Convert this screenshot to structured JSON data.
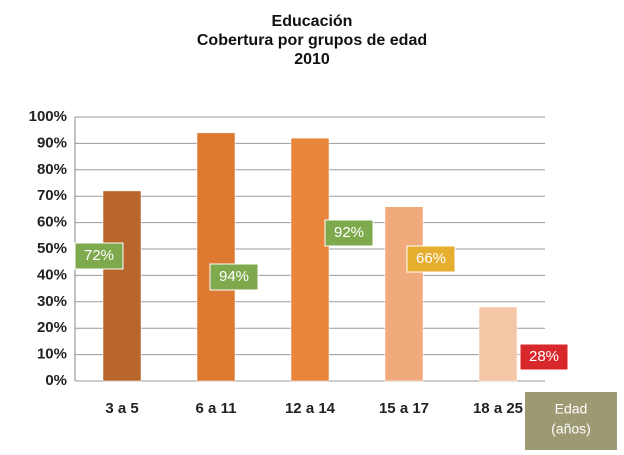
{
  "chart_data": {
    "type": "bar",
    "title": [
      "Educación",
      "Cobertura por grupos de edad",
      "2010"
    ],
    "categories": [
      "3 a 5",
      "6 a 11",
      "12 a 14",
      "15 a 17",
      "18 a 25"
    ],
    "values": [
      72,
      94,
      92,
      66,
      28
    ],
    "value_labels": [
      "72%",
      "94%",
      "92%",
      "66%",
      "28%"
    ],
    "colors": [
      "#b9652c",
      "#de7932",
      "#e8853a",
      "#f1aa7c",
      "#f3c6a6"
    ],
    "label_colors": [
      "#7fa94d",
      "#7fa94d",
      "#7fa94d",
      "#e6ad2e",
      "#d9282b"
    ],
    "x_label": [
      "Edad",
      "(años)"
    ],
    "ylim": [
      0,
      100
    ],
    "yticks": [
      {
        "value": 0,
        "label": "0%"
      },
      {
        "value": 10,
        "label": "10%"
      },
      {
        "value": 20,
        "label": "20%"
      },
      {
        "value": 30,
        "label": "30%"
      },
      {
        "value": 40,
        "label": "40%"
      },
      {
        "value": 50,
        "label": "50%"
      },
      {
        "value": 60,
        "label": "60%"
      },
      {
        "value": 70,
        "label": "70%"
      },
      {
        "value": 80,
        "label": "80%"
      },
      {
        "value": 90,
        "label": "90%"
      },
      {
        "value": 100,
        "label": "100%"
      }
    ],
    "grid": true
  }
}
